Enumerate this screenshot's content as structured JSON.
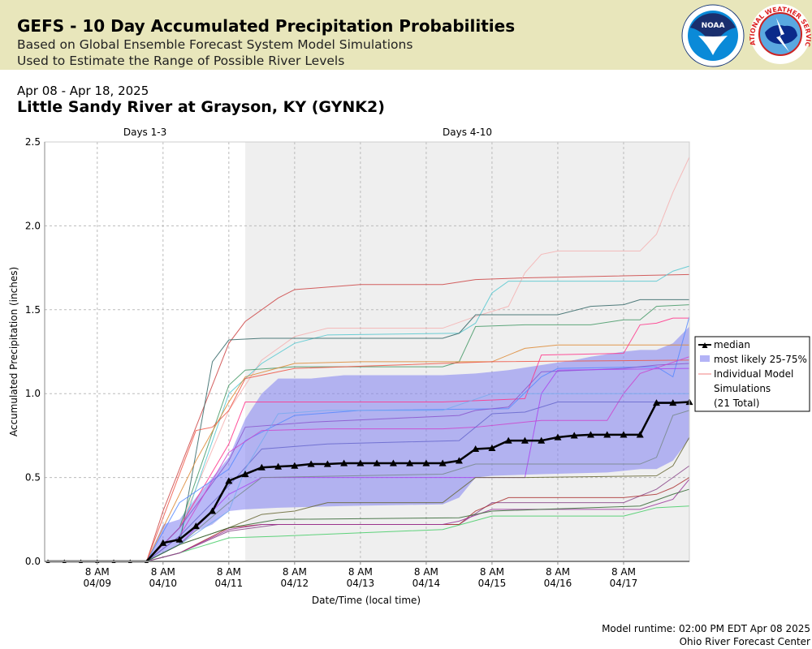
{
  "header": {
    "title": "GEFS - 10 Day Accumulated Precipitation Probabilities",
    "subtitle1": "Based on Global Ensemble Forecast System Model Simulations",
    "subtitle2": "Used to Estimate the Range of Possible River Levels",
    "logo1": "NOAA",
    "logo2": "NATIONAL WEATHER SERVICE"
  },
  "date_range": "Apr 08 - Apr 18, 2025",
  "location": "Little Sandy River at Grayson, KY (GYNK2)",
  "footer": {
    "runtime": "Model runtime: 02:00 PM EDT Apr 08 2025",
    "center": "Ohio River Forecast Center"
  },
  "chart_data": {
    "type": "line",
    "ylabel": "Accumulated Precipitation (inches)",
    "xlabel": "Date/Time (local time)",
    "ylim": [
      0,
      2.5
    ],
    "yticks": [
      "0.0",
      "0.5",
      "1.0",
      "1.5",
      "2.0",
      "2.5"
    ],
    "xticks": [
      {
        "l1": "8 AM",
        "l2": "04/09",
        "i": 3
      },
      {
        "l1": "8 AM",
        "l2": "04/10",
        "i": 7
      },
      {
        "l1": "8 AM",
        "l2": "04/11",
        "i": 11
      },
      {
        "l1": "8 AM",
        "l2": "04/12",
        "i": 15
      },
      {
        "l1": "8 AM",
        "l2": "04/13",
        "i": 19
      },
      {
        "l1": "8 AM",
        "l2": "04/14",
        "i": 23
      },
      {
        "l1": "8 AM",
        "l2": "04/15",
        "i": 27
      },
      {
        "l1": "8 AM",
        "l2": "04/16",
        "i": 31
      },
      {
        "l1": "8 AM",
        "l2": "04/17",
        "i": 35
      }
    ],
    "x_note": "6-hourly steps starting 04/08 2 PM, 40 points",
    "regions": [
      {
        "label": "Days 1-3",
        "from": 0,
        "to": 12
      },
      {
        "label": "Days 4-10",
        "from": 12,
        "to": 39
      }
    ],
    "legend": {
      "median": "median",
      "band": "most likely 25-75%",
      "models": "Individual Model",
      "models2": "Simulations",
      "total": "(21 Total)"
    },
    "median": [
      0,
      0,
      0,
      0,
      0,
      0,
      0,
      0.11,
      0.13,
      0.21,
      0.3,
      0.48,
      0.52,
      0.56,
      0.565,
      0.57,
      0.58,
      0.58,
      0.585,
      0.585,
      0.585,
      0.585,
      0.585,
      0.585,
      0.585,
      0.6,
      0.67,
      0.675,
      0.72,
      0.72,
      0.72,
      0.74,
      0.75,
      0.755,
      0.755,
      0.755,
      0.755,
      0.945,
      0.945,
      0.95
    ],
    "band_upper": [
      [
        6,
        0
      ],
      [
        7,
        0.22
      ],
      [
        8,
        0.25
      ],
      [
        9,
        0.38
      ],
      [
        10,
        0.5
      ],
      [
        11,
        0.62
      ],
      [
        12,
        0.85
      ],
      [
        13,
        1.0
      ],
      [
        14,
        1.09
      ],
      [
        16,
        1.09
      ],
      [
        18,
        1.11
      ],
      [
        24,
        1.11
      ],
      [
        26,
        1.12
      ],
      [
        27,
        1.13
      ],
      [
        28,
        1.14
      ],
      [
        30,
        1.17
      ],
      [
        32,
        1.2
      ],
      [
        33,
        1.22
      ],
      [
        35,
        1.25
      ],
      [
        36,
        1.26
      ],
      [
        37,
        1.26
      ],
      [
        38,
        1.3
      ],
      [
        39,
        1.4
      ]
    ],
    "band_lower": [
      [
        6,
        0
      ],
      [
        7,
        0.05
      ],
      [
        8,
        0.1
      ],
      [
        9,
        0.18
      ],
      [
        10,
        0.22
      ],
      [
        11,
        0.3
      ],
      [
        12,
        0.31
      ],
      [
        14,
        0.32
      ],
      [
        18,
        0.33
      ],
      [
        24,
        0.34
      ],
      [
        25,
        0.38
      ],
      [
        26,
        0.5
      ],
      [
        27,
        0.51
      ],
      [
        30,
        0.52
      ],
      [
        34,
        0.53
      ],
      [
        36,
        0.55
      ],
      [
        37,
        0.55
      ],
      [
        38,
        0.6
      ],
      [
        39,
        0.73
      ]
    ],
    "models": [
      {
        "c": "#cc4444",
        "p": [
          [
            6,
            0
          ],
          [
            7,
            0.3
          ],
          [
            11,
            1.3
          ],
          [
            12,
            1.43
          ],
          [
            14,
            1.57
          ],
          [
            15,
            1.62
          ],
          [
            19,
            1.65
          ],
          [
            24,
            1.65
          ],
          [
            26,
            1.68
          ],
          [
            29,
            1.69
          ],
          [
            39,
            1.71
          ]
        ]
      },
      {
        "c": "#f4b0b0",
        "p": [
          [
            6,
            0
          ],
          [
            8,
            0.2
          ],
          [
            11,
            0.9
          ],
          [
            13,
            1.2
          ],
          [
            15,
            1.34
          ],
          [
            17,
            1.39
          ],
          [
            24,
            1.39
          ],
          [
            26,
            1.46
          ],
          [
            28,
            1.52
          ],
          [
            29,
            1.72
          ],
          [
            30,
            1.83
          ],
          [
            31,
            1.85
          ],
          [
            36,
            1.85
          ],
          [
            37,
            1.95
          ],
          [
            38,
            2.2
          ],
          [
            39,
            2.41
          ]
        ]
      },
      {
        "c": "#55c8d0",
        "p": [
          [
            6,
            0
          ],
          [
            8,
            0.15
          ],
          [
            11,
            1.0
          ],
          [
            13,
            1.18
          ],
          [
            15,
            1.3
          ],
          [
            17,
            1.35
          ],
          [
            25,
            1.36
          ],
          [
            26,
            1.42
          ],
          [
            27,
            1.6
          ],
          [
            28,
            1.67
          ],
          [
            37,
            1.67
          ],
          [
            38,
            1.73
          ],
          [
            39,
            1.76
          ]
        ]
      },
      {
        "c": "#336666",
        "p": [
          [
            6,
            0
          ],
          [
            8,
            0.1
          ],
          [
            10,
            1.19
          ],
          [
            11,
            1.32
          ],
          [
            13,
            1.33
          ],
          [
            24,
            1.33
          ],
          [
            25,
            1.36
          ],
          [
            26,
            1.47
          ],
          [
            31,
            1.47
          ],
          [
            33,
            1.52
          ],
          [
            35,
            1.53
          ],
          [
            36,
            1.56
          ],
          [
            39,
            1.56
          ]
        ]
      },
      {
        "c": "#449966",
        "p": [
          [
            6,
            0
          ],
          [
            8,
            0.2
          ],
          [
            11,
            1.05
          ],
          [
            12,
            1.14
          ],
          [
            15,
            1.16
          ],
          [
            24,
            1.16
          ],
          [
            25,
            1.19
          ],
          [
            26,
            1.4
          ],
          [
            29,
            1.41
          ],
          [
            33,
            1.41
          ],
          [
            35,
            1.44
          ],
          [
            36,
            1.44
          ],
          [
            37,
            1.52
          ],
          [
            39,
            1.53
          ]
        ]
      },
      {
        "c": "#dd8833",
        "p": [
          [
            6,
            0
          ],
          [
            9,
            0.6
          ],
          [
            11,
            0.95
          ],
          [
            12,
            1.1
          ],
          [
            15,
            1.18
          ],
          [
            19,
            1.19
          ],
          [
            27,
            1.19
          ],
          [
            29,
            1.27
          ],
          [
            31,
            1.29
          ],
          [
            39,
            1.29
          ]
        ]
      },
      {
        "c": "#ee5544",
        "p": [
          [
            6,
            0
          ],
          [
            9,
            0.78
          ],
          [
            10,
            0.8
          ],
          [
            11,
            0.9
          ],
          [
            12,
            1.09
          ],
          [
            15,
            1.15
          ],
          [
            27,
            1.19
          ],
          [
            39,
            1.2
          ]
        ]
      },
      {
        "c": "#ff3388",
        "p": [
          [
            6,
            0
          ],
          [
            8,
            0.2
          ],
          [
            11,
            0.7
          ],
          [
            12,
            0.95
          ],
          [
            24,
            0.95
          ],
          [
            29,
            0.97
          ],
          [
            30,
            1.23
          ],
          [
            35,
            1.24
          ],
          [
            36,
            1.41
          ],
          [
            37,
            1.42
          ],
          [
            38,
            1.45
          ],
          [
            39,
            1.45
          ]
        ]
      },
      {
        "c": "#5588ff",
        "p": [
          [
            6,
            0
          ],
          [
            8,
            0.35
          ],
          [
            11,
            0.55
          ],
          [
            12,
            0.72
          ],
          [
            15,
            0.87
          ],
          [
            19,
            0.9
          ],
          [
            28,
            0.91
          ],
          [
            30,
            1.1
          ],
          [
            31,
            1.15
          ],
          [
            37,
            1.16
          ],
          [
            38,
            1.1
          ],
          [
            39,
            1.46
          ]
        ]
      },
      {
        "c": "#8855cc",
        "p": [
          [
            6,
            0
          ],
          [
            8,
            0.2
          ],
          [
            11,
            0.6
          ],
          [
            12,
            0.8
          ],
          [
            16,
            0.83
          ],
          [
            25,
            0.87
          ],
          [
            26,
            0.9
          ],
          [
            28,
            0.92
          ],
          [
            30,
            1.13
          ],
          [
            35,
            1.15
          ],
          [
            37,
            1.17
          ],
          [
            39,
            1.18
          ]
        ]
      },
      {
        "c": "#cc44cc",
        "p": [
          [
            6,
            0
          ],
          [
            8,
            0.15
          ],
          [
            11,
            0.65
          ],
          [
            13,
            0.78
          ],
          [
            17,
            0.79
          ],
          [
            24,
            0.79
          ],
          [
            26,
            0.8
          ],
          [
            28,
            0.82
          ],
          [
            30,
            0.84
          ],
          [
            34,
            0.84
          ],
          [
            35,
            1.0
          ],
          [
            36,
            1.12
          ],
          [
            39,
            1.22
          ]
        ]
      },
      {
        "c": "#6666cc",
        "p": [
          [
            6,
            0
          ],
          [
            8,
            0.15
          ],
          [
            11,
            0.45
          ],
          [
            13,
            0.67
          ],
          [
            17,
            0.7
          ],
          [
            25,
            0.72
          ],
          [
            27,
            0.88
          ],
          [
            29,
            0.89
          ],
          [
            31,
            0.95
          ],
          [
            39,
            0.95
          ]
        ]
      },
      {
        "c": "#aa44ee",
        "p": [
          [
            6,
            0
          ],
          [
            8,
            0.1
          ],
          [
            11,
            0.4
          ],
          [
            13,
            0.5
          ],
          [
            24,
            0.5
          ],
          [
            29,
            0.5
          ],
          [
            30,
            1.0
          ],
          [
            31,
            1.14
          ],
          [
            39,
            1.15
          ]
        ]
      },
      {
        "c": "#778888",
        "p": [
          [
            6,
            0
          ],
          [
            8,
            0.1
          ],
          [
            11,
            0.35
          ],
          [
            13,
            0.5
          ],
          [
            24,
            0.52
          ],
          [
            26,
            0.58
          ],
          [
            36,
            0.58
          ],
          [
            37,
            0.62
          ],
          [
            38,
            0.87
          ],
          [
            39,
            0.9
          ]
        ]
      },
      {
        "c": "#666633",
        "p": [
          [
            6,
            0
          ],
          [
            8,
            0.1
          ],
          [
            11,
            0.2
          ],
          [
            13,
            0.28
          ],
          [
            15,
            0.3
          ],
          [
            17,
            0.35
          ],
          [
            24,
            0.35
          ],
          [
            26,
            0.5
          ],
          [
            29,
            0.5
          ],
          [
            37,
            0.51
          ],
          [
            38,
            0.57
          ],
          [
            39,
            0.74
          ]
        ]
      },
      {
        "c": "#884488",
        "p": [
          [
            6,
            0
          ],
          [
            8,
            0.05
          ],
          [
            11,
            0.18
          ],
          [
            14,
            0.22
          ],
          [
            25,
            0.22
          ],
          [
            27,
            0.35
          ],
          [
            35,
            0.35
          ],
          [
            37,
            0.43
          ],
          [
            38,
            0.5
          ],
          [
            39,
            0.57
          ]
        ]
      },
      {
        "c": "#aa3333",
        "p": [
          [
            6,
            0
          ],
          [
            8,
            0.05
          ],
          [
            11,
            0.2
          ],
          [
            13,
            0.22
          ],
          [
            25,
            0.22
          ],
          [
            26,
            0.3
          ],
          [
            28,
            0.38
          ],
          [
            35,
            0.38
          ],
          [
            37,
            0.4
          ],
          [
            38,
            0.44
          ],
          [
            39,
            0.5
          ]
        ]
      },
      {
        "c": "#44cc66",
        "p": [
          [
            6,
            0
          ],
          [
            8,
            0.05
          ],
          [
            11,
            0.14
          ],
          [
            14,
            0.15
          ],
          [
            24,
            0.19
          ],
          [
            27,
            0.27
          ],
          [
            35,
            0.27
          ],
          [
            37,
            0.32
          ],
          [
            39,
            0.33
          ]
        ]
      },
      {
        "c": "#993399",
        "p": [
          [
            6,
            0
          ],
          [
            8,
            0.05
          ],
          [
            11,
            0.19
          ],
          [
            13,
            0.22
          ],
          [
            24,
            0.22
          ],
          [
            25,
            0.24
          ],
          [
            27,
            0.31
          ],
          [
            36,
            0.31
          ],
          [
            38,
            0.37
          ],
          [
            39,
            0.49
          ]
        ]
      },
      {
        "c": "#77aaee",
        "p": [
          [
            6,
            0
          ],
          [
            8,
            0.1
          ],
          [
            11,
            0.3
          ],
          [
            12,
            0.55
          ],
          [
            14,
            0.88
          ],
          [
            17,
            0.9
          ],
          [
            24,
            0.9
          ],
          [
            27,
            1.0
          ],
          [
            39,
            1.0
          ]
        ]
      },
      {
        "c": "#336633",
        "p": [
          [
            6,
            0
          ],
          [
            8,
            0.1
          ],
          [
            11,
            0.2
          ],
          [
            14,
            0.25
          ],
          [
            25,
            0.26
          ],
          [
            27,
            0.3
          ],
          [
            36,
            0.33
          ],
          [
            38,
            0.4
          ],
          [
            39,
            0.43
          ]
        ]
      }
    ],
    "colors": {
      "band": "#8080f0",
      "median": "#000000",
      "header_bg": "#e8e6bb",
      "shade": "#efefef"
    }
  }
}
